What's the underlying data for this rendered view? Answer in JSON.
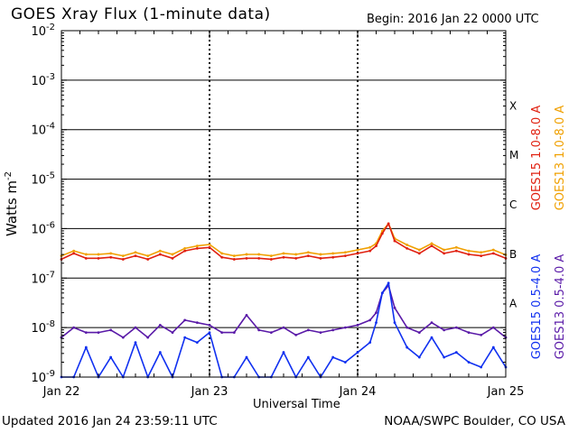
{
  "header": {
    "title": "GOES Xray Flux (1-minute data)",
    "begin": "Begin:  2016 Jan 22 0000 UTC"
  },
  "footer": {
    "updated": "Updated 2016 Jan 24 23:59:11 UTC",
    "source": "NOAA/SWPC Boulder, CO USA"
  },
  "chart_data": {
    "type": "line",
    "title": "GOES Xray Flux (1-minute data)",
    "xlabel": "Universal Time",
    "ylabel": "Watts m",
    "ylabel_sup": "-2",
    "yscale": "log",
    "ylim_exp": [
      -9,
      -2
    ],
    "ytick_exps": [
      -2,
      -3,
      -4,
      -5,
      -6,
      -7,
      -8,
      -9
    ],
    "ytick_base": "10",
    "x_days": [
      "Jan 22",
      "Jan 23",
      "Jan 24",
      "Jan 25"
    ],
    "xlim_hours": [
      0,
      72
    ],
    "flare_classes": [
      "A",
      "B",
      "C",
      "M",
      "X"
    ],
    "flare_class_exps": [
      -7.5,
      -6.5,
      -5.5,
      -4.5,
      -3.5
    ],
    "legend_location": "right",
    "series": [
      {
        "name": "GOES15 1.0-8.0 A",
        "color": "#e02010",
        "band": "long",
        "hours": [
          0,
          2,
          4,
          6,
          8,
          10,
          12,
          14,
          16,
          18,
          20,
          22,
          24,
          26,
          28,
          30,
          32,
          34,
          36,
          38,
          40,
          42,
          44,
          46,
          48,
          50,
          51,
          52,
          53,
          54,
          56,
          58,
          60,
          62,
          64,
          66,
          68,
          70,
          72
        ],
        "log_values": [
          -6.62,
          -6.5,
          -6.6,
          -6.6,
          -6.58,
          -6.62,
          -6.55,
          -6.62,
          -6.52,
          -6.6,
          -6.45,
          -6.4,
          -6.38,
          -6.58,
          -6.62,
          -6.6,
          -6.6,
          -6.62,
          -6.58,
          -6.6,
          -6.55,
          -6.6,
          -6.58,
          -6.55,
          -6.5,
          -6.45,
          -6.35,
          -6.1,
          -5.9,
          -6.25,
          -6.4,
          -6.5,
          -6.35,
          -6.5,
          -6.45,
          -6.52,
          -6.55,
          -6.5,
          -6.6
        ]
      },
      {
        "name": "GOES13 1.0-8.0 A",
        "color": "#f0a000",
        "band": "long",
        "hours": [
          0,
          2,
          4,
          6,
          8,
          10,
          12,
          14,
          16,
          18,
          20,
          22,
          24,
          26,
          28,
          30,
          32,
          34,
          36,
          38,
          40,
          42,
          44,
          46,
          48,
          50,
          51,
          52,
          53,
          54,
          56,
          58,
          60,
          62,
          64,
          66,
          68,
          70,
          72
        ],
        "log_values": [
          -6.55,
          -6.45,
          -6.52,
          -6.52,
          -6.5,
          -6.55,
          -6.48,
          -6.55,
          -6.45,
          -6.52,
          -6.4,
          -6.35,
          -6.32,
          -6.5,
          -6.55,
          -6.52,
          -6.52,
          -6.55,
          -6.5,
          -6.52,
          -6.48,
          -6.52,
          -6.5,
          -6.48,
          -6.43,
          -6.38,
          -6.3,
          -6.05,
          -5.9,
          -6.2,
          -6.33,
          -6.43,
          -6.3,
          -6.43,
          -6.38,
          -6.45,
          -6.48,
          -6.43,
          -6.53
        ]
      },
      {
        "name": "GOES15 0.5-4.0 A",
        "color": "#1030f0",
        "band": "short",
        "hours": [
          0,
          2,
          4,
          6,
          8,
          10,
          12,
          14,
          16,
          18,
          20,
          22,
          24,
          26,
          28,
          30,
          32,
          34,
          36,
          38,
          40,
          42,
          44,
          46,
          48,
          50,
          51,
          52,
          53,
          54,
          56,
          58,
          60,
          62,
          64,
          66,
          68,
          70,
          72
        ],
        "log_values": [
          -9.0,
          -9.0,
          -8.4,
          -9.0,
          -8.6,
          -9.0,
          -8.3,
          -9.0,
          -8.5,
          -9.0,
          -8.2,
          -8.3,
          -8.1,
          -9.0,
          -9.0,
          -8.6,
          -9.0,
          -9.0,
          -8.5,
          -9.0,
          -8.6,
          -9.0,
          -8.6,
          -8.7,
          -8.5,
          -8.3,
          -7.9,
          -7.3,
          -7.1,
          -7.9,
          -8.4,
          -8.6,
          -8.2,
          -8.6,
          -8.5,
          -8.7,
          -8.8,
          -8.4,
          -8.8
        ]
      },
      {
        "name": "GOES13 0.5-4.0 A",
        "color": "#5a1aa8",
        "band": "short",
        "hours": [
          0,
          2,
          4,
          6,
          8,
          10,
          12,
          14,
          16,
          18,
          20,
          22,
          24,
          26,
          28,
          30,
          32,
          34,
          36,
          38,
          40,
          42,
          44,
          46,
          48,
          50,
          51,
          52,
          53,
          54,
          56,
          58,
          60,
          62,
          64,
          66,
          68,
          70,
          72
        ],
        "log_values": [
          -8.2,
          -8.0,
          -8.1,
          -8.1,
          -8.05,
          -8.2,
          -8.0,
          -8.2,
          -7.95,
          -8.1,
          -7.85,
          -7.9,
          -7.95,
          -8.1,
          -8.1,
          -7.75,
          -8.05,
          -8.1,
          -8.0,
          -8.15,
          -8.05,
          -8.1,
          -8.05,
          -8.0,
          -7.95,
          -7.85,
          -7.7,
          -7.3,
          -7.15,
          -7.6,
          -8.0,
          -8.1,
          -7.9,
          -8.05,
          -8.0,
          -8.1,
          -8.15,
          -8.0,
          -8.2
        ]
      }
    ]
  }
}
